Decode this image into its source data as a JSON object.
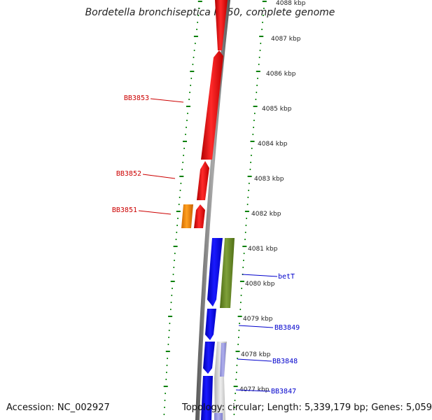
{
  "title": "Bordetella bronchiseptica RB50, complete genome",
  "accession_text": "Accession: NC_002927",
  "topology_text": "Topology: circular; Length: 5,339,179 bp; Genes: 5,059",
  "colors": {
    "backbone": "#777777",
    "tick_green": "#008000",
    "gene_red": "#ee1111",
    "gene_orange": "#ee8800",
    "gene_blue": "#0000ee",
    "gene_olive": "#6b8e23",
    "gene_lavender": "#9999dd",
    "gene_gray": "#c8c8c8",
    "label_red": "#cc0000",
    "label_blue": "#0000cc"
  },
  "scale_labels": [
    "4088 kbp",
    "4087 kbp",
    "4086 kbp",
    "4085 kbp",
    "4084 kbp",
    "4083 kbp",
    "4082 kbp",
    "4081 kbp",
    "4080 kbp",
    "4079 kbp",
    "4078 kbp",
    "4077 kbp"
  ],
  "gene_labels": [
    {
      "text": "BB3853",
      "strand": "minus"
    },
    {
      "text": "BB3852",
      "strand": "minus"
    },
    {
      "text": "BB3851",
      "strand": "minus"
    },
    {
      "text": "betT",
      "strand": "plus"
    },
    {
      "text": "BB3849",
      "strand": "plus"
    },
    {
      "text": "BB3848",
      "strand": "plus"
    },
    {
      "text": "BB3847",
      "strand": "plus"
    }
  ]
}
